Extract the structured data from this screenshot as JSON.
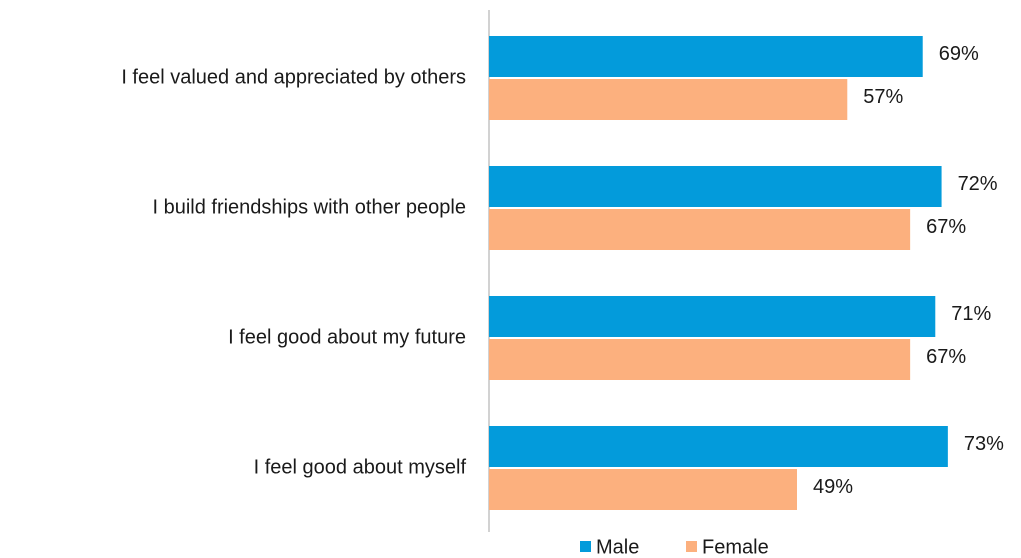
{
  "chart_data": {
    "type": "bar",
    "orientation": "horizontal",
    "categories": [
      "I feel valued and appreciated by others",
      "I build friendships with other people",
      "I feel good about my future",
      "I feel good about myself"
    ],
    "series": [
      {
        "name": "Male",
        "color": "#039bdb",
        "values": [
          69,
          72,
          71,
          73
        ],
        "value_labels": [
          "69%",
          "72%",
          "71%",
          "73%"
        ]
      },
      {
        "name": "Female",
        "color": "#fcb07e",
        "values": [
          57,
          67,
          67,
          49
        ],
        "value_labels": [
          "57%",
          "67%",
          "67%",
          "49%"
        ]
      }
    ],
    "xlim": [
      0,
      84
    ],
    "legend": "bottom"
  }
}
